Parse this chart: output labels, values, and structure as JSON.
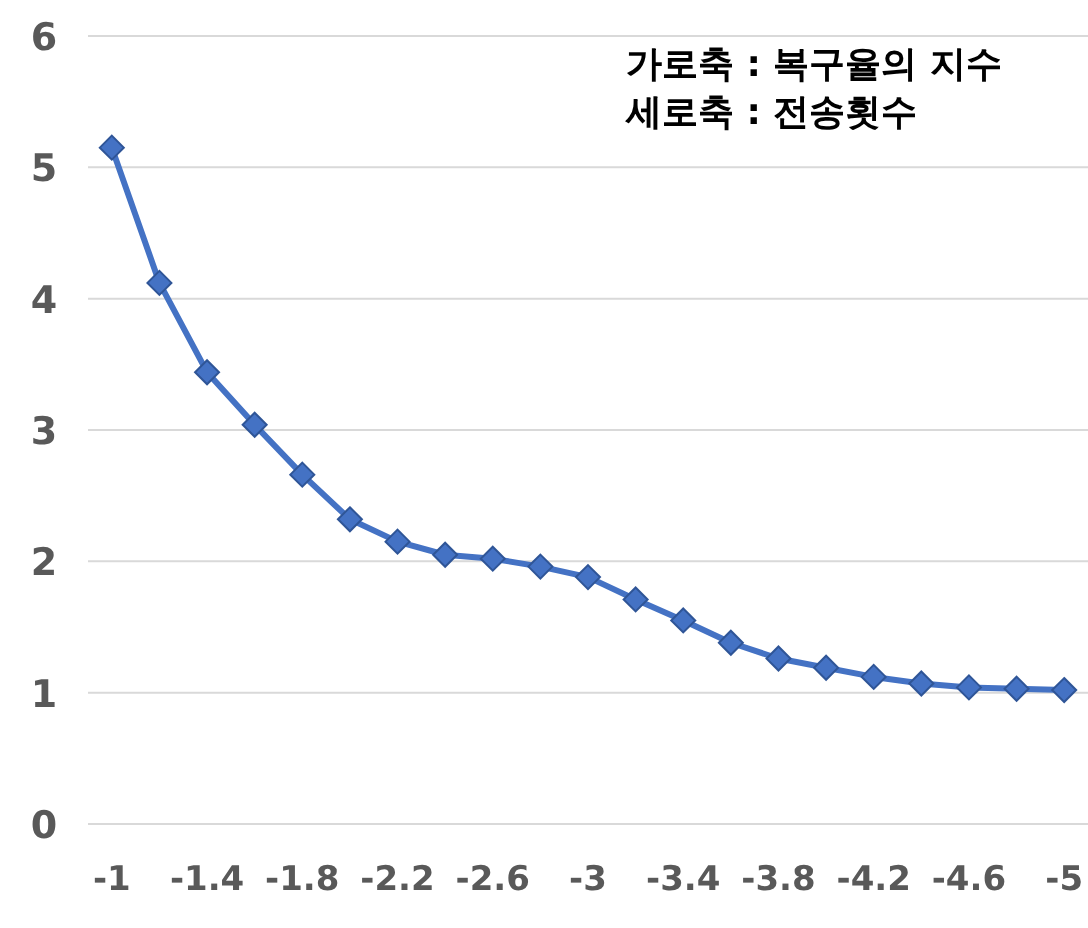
{
  "chart_data": {
    "type": "line",
    "categories": [
      "-1",
      null,
      "-1.4",
      null,
      "-1.8",
      null,
      "-2.2",
      null,
      "-2.6",
      null,
      "-3",
      null,
      "-3.4",
      null,
      "-3.8",
      null,
      "-4.2",
      null,
      "-4.6",
      null,
      "-5"
    ],
    "series": [
      {
        "color": "#4472c4",
        "values": [
          5.15,
          4.12,
          3.44,
          3.04,
          2.66,
          2.32,
          2.15,
          2.05,
          2.02,
          1.96,
          1.88,
          1.71,
          1.55,
          1.38,
          1.26,
          1.19,
          1.12,
          1.07,
          1.04,
          1.03,
          1.02
        ]
      }
    ],
    "ylim": [
      0,
      6
    ],
    "yticks": [
      0,
      1,
      2,
      3,
      4,
      5,
      6
    ],
    "grid": "y",
    "marker": "diamond",
    "line_style": "solid",
    "annotations": [
      "가로축 : 복구율의 지수",
      "세로축 : 전송횟수"
    ]
  }
}
